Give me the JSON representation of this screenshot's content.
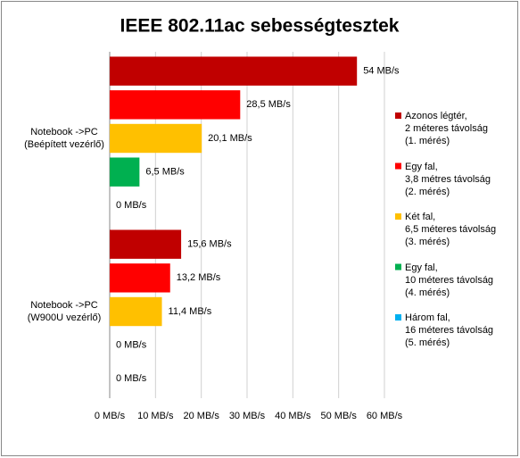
{
  "chart_data": {
    "type": "hbar",
    "title": "IEEE 802.11ac sebességtesztek",
    "categories": [
      "Notebook ->PC\n(Beépített vezérlő)",
      "Notebook ->PC\n(W900U vezérlő)"
    ],
    "series": [
      {
        "name": "Azonos légtér,\n2 méteres távolság\n(1. mérés)",
        "color": "#c00000",
        "values": [
          54,
          15.6
        ],
        "value_labels": [
          "54 MB/s",
          "15,6 MB/s"
        ]
      },
      {
        "name": "Egy fal,\n3,8 métres távolság\n(2. mérés)",
        "color": "#ff0000",
        "values": [
          28.5,
          13.2
        ],
        "value_labels": [
          "28,5 MB/s",
          "13,2 MB/s"
        ]
      },
      {
        "name": "Két fal,\n6,5 méteres távolság\n(3. mérés)",
        "color": "#ffc000",
        "values": [
          20.1,
          11.4
        ],
        "value_labels": [
          "20,1 MB/s",
          "11,4 MB/s"
        ]
      },
      {
        "name": "Egy fal,\n10 méteres távolság\n(4. mérés)",
        "color": "#00b050",
        "values": [
          6.5,
          0
        ],
        "value_labels": [
          "6,5 MB/s",
          "0 MB/s"
        ]
      },
      {
        "name": "Három fal,\n16 méteres távolság\n(5. mérés)",
        "color": "#00b0f0",
        "values": [
          0,
          0
        ],
        "value_labels": [
          "0 MB/s",
          "0 MB/s"
        ]
      }
    ],
    "xlim": [
      0,
      60
    ],
    "xticks": [
      {
        "value": 0,
        "label": "0 MB/s"
      },
      {
        "value": 10,
        "label": "10 MB/s"
      },
      {
        "value": 20,
        "label": "20 MB/s"
      },
      {
        "value": 30,
        "label": "30 MB/s"
      },
      {
        "value": 40,
        "label": "40 MB/s"
      },
      {
        "value": 50,
        "label": "50 MB/s"
      },
      {
        "value": 60,
        "label": "60 MB/s"
      }
    ],
    "grid": true,
    "legend": "right"
  }
}
